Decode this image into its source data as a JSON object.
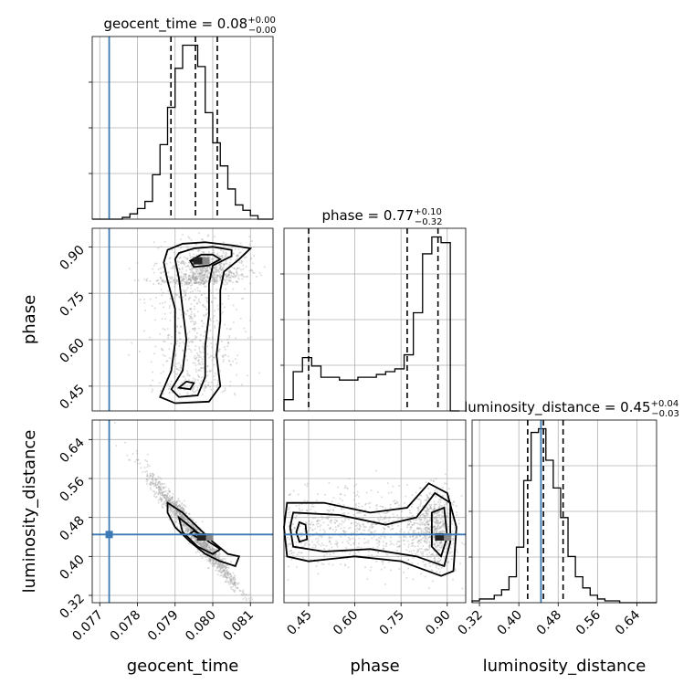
{
  "chart_data": {
    "type": "scatter",
    "variant": "corner-plot",
    "parameters": [
      "geocent_time",
      "phase",
      "luminosity_distance"
    ],
    "titles": {
      "geocent_time": {
        "label": "geocent_time",
        "median": "0.08",
        "plus": "+0.00",
        "minus": "−0.00"
      },
      "phase": {
        "label": "phase",
        "median": "0.77",
        "plus": "+0.10",
        "minus": "−0.32"
      },
      "luminosity_distance": {
        "label": "luminosity_distance",
        "median": "0.45",
        "plus": "+0.04",
        "minus": "−0.03"
      }
    },
    "ranges": {
      "geocent_time": [
        0.0768,
        0.0816
      ],
      "phase": [
        0.37,
        0.96
      ],
      "luminosity_distance": [
        0.305,
        0.68
      ]
    },
    "ticks": {
      "geocent_time": [
        "0.077",
        "0.078",
        "0.079",
        "0.080",
        "0.081"
      ],
      "phase": [
        "0.45",
        "0.60",
        "0.75",
        "0.90"
      ],
      "luminosity_distance": [
        "0.32",
        "0.40",
        "0.48",
        "0.56",
        "0.64"
      ]
    },
    "truths": {
      "geocent_time": 0.07725,
      "phase": null,
      "luminosity_distance": 0.445
    },
    "quantiles": {
      "geocent_time": [
        0.07889,
        0.07954,
        0.08012
      ],
      "phase": [
        0.45,
        0.77,
        0.87
      ],
      "luminosity_distance": [
        0.418,
        0.45,
        0.49
      ]
    },
    "histograms": {
      "geocent_time": {
        "edges": [
          0.0768,
          0.077,
          0.0772,
          0.0774,
          0.0776,
          0.0778,
          0.078,
          0.0782,
          0.0784,
          0.0786,
          0.0788,
          0.079,
          0.0792,
          0.0794,
          0.0796,
          0.0798,
          0.08,
          0.0802,
          0.0804,
          0.0806,
          0.0808,
          0.081,
          0.0812,
          0.0814,
          0.0816
        ],
        "counts": [
          0,
          0,
          0,
          0,
          1,
          3,
          6,
          10,
          25,
          42,
          63,
          85,
          98,
          98,
          86,
          60,
          43,
          30,
          17,
          8,
          5,
          2,
          0,
          0
        ]
      },
      "phase": {
        "edges": [
          0.37,
          0.4,
          0.43,
          0.46,
          0.49,
          0.52,
          0.55,
          0.58,
          0.61,
          0.64,
          0.67,
          0.7,
          0.73,
          0.76,
          0.79,
          0.82,
          0.85,
          0.88,
          0.91,
          0.94
        ],
        "counts": [
          4,
          14,
          19,
          16,
          12,
          12,
          11,
          11,
          12,
          12,
          13,
          14,
          15,
          20,
          35,
          56,
          62,
          60,
          0
        ]
      },
      "luminosity_distance": {
        "edges": [
          0.305,
          0.32,
          0.335,
          0.35,
          0.365,
          0.38,
          0.395,
          0.41,
          0.425,
          0.44,
          0.455,
          0.47,
          0.485,
          0.5,
          0.515,
          0.53,
          0.545,
          0.56,
          0.575,
          0.59,
          0.605,
          0.62,
          0.635,
          0.65,
          0.665,
          0.68
        ],
        "counts": [
          1,
          2,
          2,
          4,
          7,
          14,
          30,
          66,
          92,
          94,
          77,
          62,
          46,
          25,
          14,
          8,
          4,
          2,
          1,
          1,
          0,
          0,
          0,
          0,
          0
        ]
      }
    },
    "contours": {
      "phase_vs_geocent_time": [
        [
          [
            0.0788,
            0.89
          ],
          [
            0.0792,
            0.91
          ],
          [
            0.0798,
            0.915
          ],
          [
            0.0805,
            0.905
          ],
          [
            0.081,
            0.895
          ],
          [
            0.0807,
            0.86
          ],
          [
            0.0803,
            0.82
          ],
          [
            0.0802,
            0.76
          ],
          [
            0.0802,
            0.66
          ],
          [
            0.0801,
            0.55
          ],
          [
            0.0802,
            0.45
          ],
          [
            0.0799,
            0.4
          ],
          [
            0.079,
            0.395
          ],
          [
            0.0786,
            0.415
          ],
          [
            0.0789,
            0.5
          ],
          [
            0.079,
            0.59
          ],
          [
            0.079,
            0.7
          ],
          [
            0.0788,
            0.79
          ],
          [
            0.0787,
            0.85
          ],
          [
            0.0788,
            0.89
          ]
        ],
        [
          [
            0.0791,
            0.88
          ],
          [
            0.0795,
            0.895
          ],
          [
            0.08,
            0.9
          ],
          [
            0.0805,
            0.89
          ],
          [
            0.0805,
            0.87
          ],
          [
            0.08,
            0.84
          ],
          [
            0.0799,
            0.78
          ],
          [
            0.0799,
            0.68
          ],
          [
            0.0798,
            0.58
          ],
          [
            0.0798,
            0.48
          ],
          [
            0.0796,
            0.42
          ],
          [
            0.0791,
            0.415
          ],
          [
            0.0789,
            0.44
          ],
          [
            0.0792,
            0.5
          ],
          [
            0.0793,
            0.6
          ],
          [
            0.0792,
            0.7
          ],
          [
            0.0791,
            0.8
          ],
          [
            0.079,
            0.86
          ],
          [
            0.0791,
            0.88
          ]
        ],
        [
          [
            0.0794,
            0.855
          ],
          [
            0.0797,
            0.875
          ],
          [
            0.08,
            0.875
          ],
          [
            0.0802,
            0.86
          ],
          [
            0.0799,
            0.84
          ],
          [
            0.0795,
            0.835
          ],
          [
            0.0794,
            0.855
          ]
        ],
        [
          [
            0.07945,
            0.855
          ],
          [
            0.07965,
            0.862
          ],
          [
            0.0798,
            0.855
          ],
          [
            0.07965,
            0.848
          ],
          [
            0.07945,
            0.855
          ]
        ],
        [
          [
            0.0791,
            0.445
          ],
          [
            0.0793,
            0.465
          ],
          [
            0.0795,
            0.46
          ],
          [
            0.0794,
            0.44
          ],
          [
            0.0791,
            0.445
          ]
        ]
      ],
      "luminosity_distance_vs_geocent_time": [
        [
          [
            0.0788,
            0.51
          ],
          [
            0.0792,
            0.49
          ],
          [
            0.0796,
            0.46
          ],
          [
            0.08,
            0.43
          ],
          [
            0.0804,
            0.405
          ],
          [
            0.0807,
            0.4
          ],
          [
            0.0806,
            0.38
          ],
          [
            0.0802,
            0.39
          ],
          [
            0.0798,
            0.405
          ],
          [
            0.0794,
            0.43
          ],
          [
            0.079,
            0.46
          ],
          [
            0.0788,
            0.49
          ],
          [
            0.0788,
            0.51
          ]
        ],
        [
          [
            0.0791,
            0.48
          ],
          [
            0.0795,
            0.455
          ],
          [
            0.0799,
            0.43
          ],
          [
            0.0802,
            0.415
          ],
          [
            0.08,
            0.405
          ],
          [
            0.0796,
            0.42
          ],
          [
            0.0792,
            0.45
          ],
          [
            0.0791,
            0.48
          ]
        ],
        [
          [
            0.0795,
            0.452
          ],
          [
            0.0798,
            0.44
          ],
          [
            0.0797,
            0.435
          ],
          [
            0.0794,
            0.447
          ],
          [
            0.0795,
            0.452
          ]
        ]
      ],
      "luminosity_distance_vs_phase": [
        [
          [
            0.38,
            0.51
          ],
          [
            0.5,
            0.51
          ],
          [
            0.65,
            0.49
          ],
          [
            0.77,
            0.5
          ],
          [
            0.84,
            0.55
          ],
          [
            0.9,
            0.53
          ],
          [
            0.93,
            0.46
          ],
          [
            0.92,
            0.37
          ],
          [
            0.88,
            0.36
          ],
          [
            0.75,
            0.39
          ],
          [
            0.6,
            0.4
          ],
          [
            0.45,
            0.39
          ],
          [
            0.38,
            0.4
          ],
          [
            0.37,
            0.46
          ],
          [
            0.38,
            0.51
          ]
        ],
        [
          [
            0.4,
            0.49
          ],
          [
            0.55,
            0.485
          ],
          [
            0.7,
            0.465
          ],
          [
            0.8,
            0.48
          ],
          [
            0.86,
            0.53
          ],
          [
            0.91,
            0.51
          ],
          [
            0.91,
            0.43
          ],
          [
            0.89,
            0.38
          ],
          [
            0.8,
            0.4
          ],
          [
            0.65,
            0.415
          ],
          [
            0.5,
            0.41
          ],
          [
            0.4,
            0.42
          ],
          [
            0.39,
            0.46
          ],
          [
            0.4,
            0.49
          ]
        ],
        [
          [
            0.42,
            0.47
          ],
          [
            0.44,
            0.465
          ],
          [
            0.445,
            0.435
          ],
          [
            0.42,
            0.43
          ],
          [
            0.41,
            0.45
          ],
          [
            0.42,
            0.47
          ]
        ],
        [
          [
            0.85,
            0.49
          ],
          [
            0.89,
            0.5
          ],
          [
            0.9,
            0.44
          ],
          [
            0.88,
            0.4
          ],
          [
            0.85,
            0.42
          ],
          [
            0.85,
            0.49
          ]
        ]
      ]
    },
    "density_peaks": {
      "phase_vs_geocent_time": [
        0.0796,
        0.855
      ],
      "luminosity_distance_vs_geocent_time": [
        0.0797,
        0.44
      ],
      "luminosity_distance_vs_phase": [
        0.875,
        0.44
      ]
    },
    "grid": true
  },
  "colors": {
    "truth": "#3d7ab5",
    "lines": "#000000",
    "scatter": "#9a9a9a",
    "grid": "#b0b0b0"
  }
}
